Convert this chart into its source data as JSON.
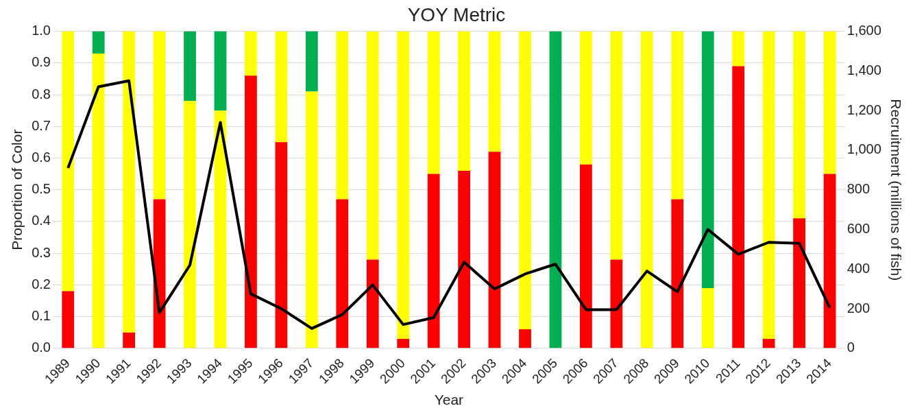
{
  "chart_data": {
    "type": "bar",
    "title": "YOY Metric",
    "xlabel": "Year",
    "ylabel": "Proportion of Color",
    "y2label": "Recruitment (millions of fish)",
    "categories": [
      "1989",
      "1990",
      "1991",
      "1992",
      "1993",
      "1994",
      "1995",
      "1996",
      "1997",
      "1998",
      "1999",
      "2000",
      "2001",
      "2002",
      "2003",
      "2004",
      "2005",
      "2006",
      "2007",
      "2008",
      "2009",
      "2010",
      "2011",
      "2012",
      "2013",
      "2014"
    ],
    "stacked": true,
    "series": [
      {
        "color": "#ff0000",
        "values": [
          0.18,
          0,
          0.05,
          0.47,
          0,
          0,
          0.86,
          0.65,
          0,
          0.47,
          0.28,
          0.03,
          0.55,
          0.56,
          0.62,
          0.06,
          0,
          0.58,
          0.28,
          0,
          0.47,
          0,
          0.89,
          0.03,
          0.41,
          0.55
        ]
      },
      {
        "color": "#ffff00",
        "values": [
          0.82,
          0.93,
          0.95,
          0.53,
          0.78,
          0.75,
          0.14,
          0.35,
          0.81,
          0.53,
          0.72,
          0.97,
          0.45,
          0.44,
          0.38,
          0.94,
          0,
          0.42,
          0.72,
          1,
          0.53,
          0.19,
          0.11,
          0.97,
          0.59,
          0.45
        ]
      },
      {
        "color": "#00b050",
        "values": [
          0,
          0.07,
          0,
          0,
          0.22,
          0.25,
          0,
          0,
          0.19,
          0,
          0,
          0,
          0,
          0,
          0,
          0,
          1,
          0,
          0,
          0,
          0,
          0.81,
          0,
          0,
          0,
          0
        ]
      },
      {
        "type": "line",
        "axis": "y2",
        "color": "#000000",
        "values": [
          910,
          1320,
          1350,
          180,
          420,
          1140,
          275,
          200,
          100,
          170,
          320,
          120,
          155,
          435,
          300,
          375,
          425,
          195,
          195,
          390,
          285,
          600,
          475,
          535,
          530,
          205
        ]
      }
    ],
    "ylim": [
      0,
      1
    ],
    "yticks": [
      {
        "value": 0,
        "label": "0.0"
      },
      0.1,
      0.2,
      0.3,
      0.4,
      0.5,
      0.6,
      0.7,
      0.8,
      0.9,
      {
        "value": 1,
        "label": "1.0"
      }
    ],
    "y2lim": [
      0,
      1600
    ],
    "y2ticks": [
      {
        "value": 0,
        "label": "0"
      },
      {
        "value": 200,
        "label": "200"
      },
      {
        "value": 400,
        "label": "400"
      },
      {
        "value": 600,
        "label": "600"
      },
      {
        "value": 800,
        "label": "800"
      },
      {
        "value": 1000,
        "label": "1,000"
      },
      {
        "value": 1200,
        "label": "1,200"
      },
      {
        "value": 1400,
        "label": "1,400"
      },
      {
        "value": 1600,
        "label": "1,600"
      }
    ],
    "grid": "y",
    "legend": false,
    "marker": "none",
    "line_style": "solid"
  }
}
